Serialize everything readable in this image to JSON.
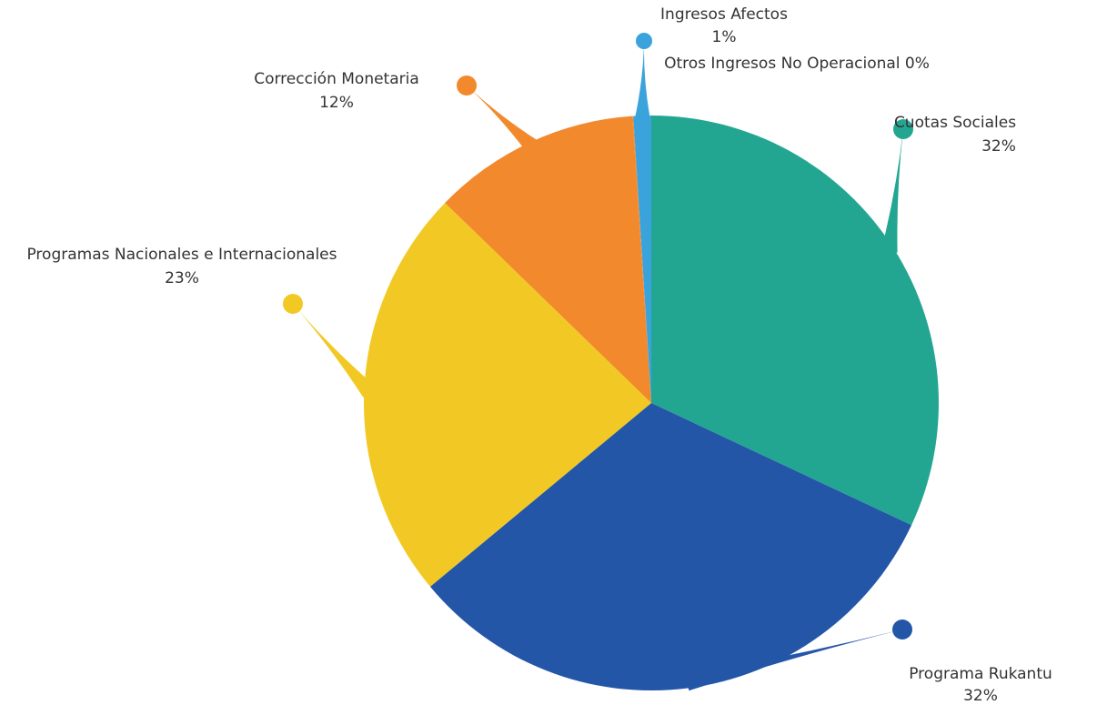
{
  "chart_data": {
    "type": "pie",
    "title": "",
    "slices": [
      {
        "name": "Cuotas Sociales",
        "pct_label": "32%",
        "value": 32.0,
        "color": "#23A691"
      },
      {
        "name": "Programa Rukantu",
        "pct_label": "32%",
        "value": 32.0,
        "color": "#2456A8"
      },
      {
        "name": "Programas Nacionales e Internacionales",
        "pct_label": "23%",
        "value": 23.3,
        "color": "#F2C924"
      },
      {
        "name": "Corrección Monetaria",
        "pct_label": "12%",
        "value": 11.7,
        "color": "#F2892C"
      },
      {
        "name": "Otros Ingresos No Operacional",
        "pct_label": "0%",
        "value": 0.05,
        "color": "#F2892C"
      },
      {
        "name": "Ingresos Afectos",
        "pct_label": "1%",
        "value": 1.0,
        "color": "#3BA3DB"
      }
    ],
    "legend": "none"
  }
}
